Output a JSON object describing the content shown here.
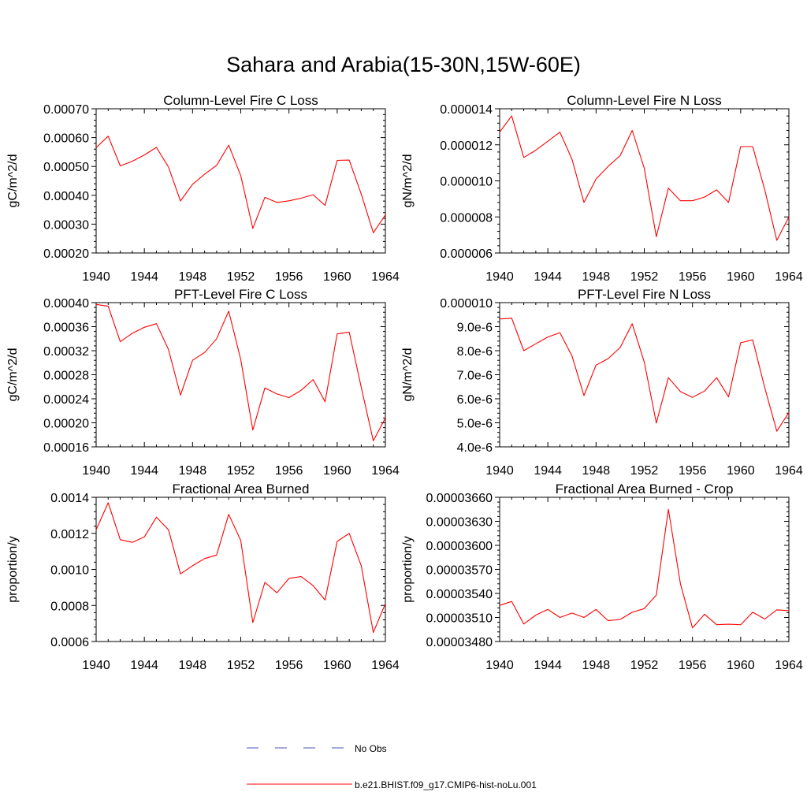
{
  "figure": {
    "title": "Sahara and Arabia(15-30N,15W-60E)"
  },
  "legend": {
    "items": [
      {
        "label": "No Obs",
        "color": "#4a55b5",
        "style": "dashed"
      },
      {
        "label": "b.e21.BHIST.f09_g17.CMIP6-hist-noLu.001",
        "color": "#ff0000",
        "style": "solid"
      }
    ]
  },
  "chart_data": [
    {
      "type": "line",
      "title": "Column-Level Fire C Loss",
      "ylabel": "gC/m^2/d",
      "xlabel": "",
      "xlim": [
        1940,
        1964
      ],
      "ylim": [
        0.0002,
        0.0007
      ],
      "xticks": [
        1940,
        1944,
        1948,
        1952,
        1956,
        1960,
        1964
      ],
      "xtick_labels": [
        "1940",
        "1944",
        "1948",
        "1952",
        "1956",
        "1960",
        "1964"
      ],
      "yticks": [
        0.0002,
        0.0003,
        0.0004,
        0.0005,
        0.0006,
        0.0007
      ],
      "ytick_labels": [
        "0.00020",
        "0.00030",
        "0.00040",
        "0.00050",
        "0.00060",
        "0.00070"
      ],
      "x": [
        1940,
        1941,
        1942,
        1943,
        1944,
        1945,
        1946,
        1947,
        1948,
        1949,
        1950,
        1951,
        1952,
        1953,
        1954,
        1955,
        1956,
        1957,
        1958,
        1959,
        1960,
        1961,
        1962,
        1963,
        1964
      ],
      "series": [
        {
          "color": "#ff0000",
          "values": [
            0.000565,
            0.000605,
            0.000502,
            0.000518,
            0.00054,
            0.000566,
            0.000498,
            0.00038,
            0.000438,
            0.000473,
            0.000504,
            0.000574,
            0.000468,
            0.000285,
            0.000393,
            0.000375,
            0.000381,
            0.00039,
            0.000402,
            0.000365,
            0.000521,
            0.000522,
            0.000404,
            0.00027,
            0.000332
          ]
        }
      ]
    },
    {
      "type": "line",
      "title": "Column-Level Fire N Loss",
      "ylabel": "gN/m^2/d",
      "xlabel": "",
      "xlim": [
        1940,
        1964
      ],
      "ylim": [
        6e-06,
        1.4e-05
      ],
      "xticks": [
        1940,
        1944,
        1948,
        1952,
        1956,
        1960,
        1964
      ],
      "xtick_labels": [
        "1940",
        "1944",
        "1948",
        "1952",
        "1956",
        "1960",
        "1964"
      ],
      "yticks": [
        6e-06,
        8e-06,
        1e-05,
        1.2e-05,
        1.4e-05
      ],
      "ytick_labels": [
        "0.000006",
        "0.000008",
        "0.000010",
        "0.000012",
        "0.000014"
      ],
      "x": [
        1940,
        1941,
        1942,
        1943,
        1944,
        1945,
        1946,
        1947,
        1948,
        1949,
        1950,
        1951,
        1952,
        1953,
        1954,
        1955,
        1956,
        1957,
        1958,
        1959,
        1960,
        1961,
        1962,
        1963,
        1964
      ],
      "series": [
        {
          "color": "#ff0000",
          "values": [
            1.27e-05,
            1.36e-05,
            1.13e-05,
            1.17e-05,
            1.22e-05,
            1.27e-05,
            1.12e-05,
            8.8e-06,
            1.01e-05,
            1.08e-05,
            1.14e-05,
            1.28e-05,
            1.07e-05,
            6.9e-06,
            9.6e-06,
            8.9e-06,
            8.9e-06,
            9.1e-06,
            9.5e-06,
            8.8e-06,
            1.19e-05,
            1.19e-05,
            9.5e-06,
            6.7e-06,
            8e-06
          ]
        }
      ]
    },
    {
      "type": "line",
      "title": "PFT-Level Fire C Loss",
      "ylabel": "gC/m^2/d",
      "xlabel": "",
      "xlim": [
        1940,
        1964
      ],
      "ylim": [
        0.00016,
        0.0004
      ],
      "xticks": [
        1940,
        1944,
        1948,
        1952,
        1956,
        1960,
        1964
      ],
      "xtick_labels": [
        "1940",
        "1944",
        "1948",
        "1952",
        "1956",
        "1960",
        "1964"
      ],
      "yticks": [
        0.00016,
        0.0002,
        0.00024,
        0.00028,
        0.00032,
        0.00036,
        0.0004
      ],
      "ytick_labels": [
        "0.00016",
        "0.00020",
        "0.00024",
        "0.00028",
        "0.00032",
        "0.00036",
        "0.00040"
      ],
      "x": [
        1940,
        1941,
        1942,
        1943,
        1944,
        1945,
        1946,
        1947,
        1948,
        1949,
        1950,
        1951,
        1952,
        1953,
        1954,
        1955,
        1956,
        1957,
        1958,
        1959,
        1960,
        1961,
        1962,
        1963,
        1964
      ],
      "series": [
        {
          "color": "#ff0000",
          "values": [
            0.000397,
            0.000394,
            0.000335,
            0.000349,
            0.000359,
            0.000365,
            0.000322,
            0.000246,
            0.000304,
            0.000317,
            0.00034,
            0.000386,
            0.000305,
            0.000188,
            0.000258,
            0.000248,
            0.000242,
            0.000254,
            0.000272,
            0.000235,
            0.000348,
            0.000351,
            0.000259,
            0.00017,
            0.000208
          ]
        }
      ]
    },
    {
      "type": "line",
      "title": "PFT-Level Fire N Loss",
      "ylabel": "gN/m^2/d",
      "xlabel": "",
      "xlim": [
        1940,
        1964
      ],
      "ylim": [
        4e-06,
        1e-05
      ],
      "xticks": [
        1940,
        1944,
        1948,
        1952,
        1956,
        1960,
        1964
      ],
      "xtick_labels": [
        "1940",
        "1944",
        "1948",
        "1952",
        "1956",
        "1960",
        "1964"
      ],
      "yticks": [
        4e-06,
        5e-06,
        6e-06,
        7e-06,
        8e-06,
        9e-06,
        1e-05
      ],
      "ytick_labels": [
        "4.0e-6",
        "5.0e-6",
        "6.0e-6",
        "7.0e-6",
        "8.0e-6",
        "9.0e-6",
        "0.000010"
      ],
      "x": [
        1940,
        1941,
        1942,
        1943,
        1944,
        1945,
        1946,
        1947,
        1948,
        1949,
        1950,
        1951,
        1952,
        1953,
        1954,
        1955,
        1956,
        1957,
        1958,
        1959,
        1960,
        1961,
        1962,
        1963,
        1964
      ],
      "series": [
        {
          "color": "#ff0000",
          "values": [
            9.32e-06,
            9.35e-06,
            8e-06,
            8.29e-06,
            8.57e-06,
            8.75e-06,
            7.78e-06,
            6.13e-06,
            7.4e-06,
            7.67e-06,
            8.13e-06,
            9.12e-06,
            7.53e-06,
            4.99e-06,
            6.88e-06,
            6.3e-06,
            6.06e-06,
            6.32e-06,
            6.88e-06,
            6.08e-06,
            8.33e-06,
            8.45e-06,
            6.46e-06,
            4.65e-06,
            5.43e-06
          ]
        }
      ]
    },
    {
      "type": "line",
      "title": "Fractional Area Burned",
      "ylabel": "proportion/y",
      "xlabel": "",
      "xlim": [
        1940,
        1964
      ],
      "ylim": [
        0.0006,
        0.0014
      ],
      "xticks": [
        1940,
        1944,
        1948,
        1952,
        1956,
        1960,
        1964
      ],
      "xtick_labels": [
        "1940",
        "1944",
        "1948",
        "1952",
        "1956",
        "1960",
        "1964"
      ],
      "yticks": [
        0.0006,
        0.0008,
        0.001,
        0.0012,
        0.0014
      ],
      "ytick_labels": [
        "0.0006",
        "0.0008",
        "0.0010",
        "0.0012",
        "0.0014"
      ],
      "x": [
        1940,
        1941,
        1942,
        1943,
        1944,
        1945,
        1946,
        1947,
        1948,
        1949,
        1950,
        1951,
        1952,
        1953,
        1954,
        1955,
        1956,
        1957,
        1958,
        1959,
        1960,
        1961,
        1962,
        1963,
        1964
      ],
      "series": [
        {
          "color": "#ff0000",
          "values": [
            0.00122,
            0.00137,
            0.001165,
            0.00115,
            0.00118,
            0.00129,
            0.00122,
            0.000975,
            0.00102,
            0.00106,
            0.00108,
            0.001305,
            0.00116,
            0.000705,
            0.000928,
            0.00087,
            0.00095,
            0.00096,
            0.00091,
            0.00083,
            0.001155,
            0.0012,
            0.00102,
            0.00065,
            0.00081
          ]
        }
      ]
    },
    {
      "type": "line",
      "title": "Fractional Area Burned - Crop",
      "ylabel": "proportion/y",
      "xlabel": "",
      "xlim": [
        1940,
        1964
      ],
      "ylim": [
        3.48e-05,
        3.66e-05
      ],
      "xticks": [
        1940,
        1944,
        1948,
        1952,
        1956,
        1960,
        1964
      ],
      "xtick_labels": [
        "1940",
        "1944",
        "1948",
        "1952",
        "1956",
        "1960",
        "1964"
      ],
      "yticks": [
        3.48e-05,
        3.51e-05,
        3.54e-05,
        3.57e-05,
        3.6e-05,
        3.63e-05,
        3.66e-05
      ],
      "ytick_labels": [
        "0.00003480",
        "0.00003510",
        "0.00003540",
        "0.00003570",
        "0.00003600",
        "0.00003630",
        "0.00003660"
      ],
      "x": [
        1940,
        1941,
        1942,
        1943,
        1944,
        1945,
        1946,
        1947,
        1948,
        1949,
        1950,
        1951,
        1952,
        1953,
        1954,
        1955,
        1956,
        1957,
        1958,
        1959,
        1960,
        1961,
        1962,
        1963,
        1964
      ],
      "series": [
        {
          "color": "#ff0000",
          "values": [
            3.525e-05,
            3.53e-05,
            3.5018e-05,
            3.513e-05,
            3.52e-05,
            3.51e-05,
            3.5155e-05,
            3.51e-05,
            3.52e-05,
            3.506e-05,
            3.5075e-05,
            3.5165e-05,
            3.521e-05,
            3.538e-05,
            3.645e-05,
            3.552e-05,
            3.497e-05,
            3.514e-05,
            3.501e-05,
            3.5015e-05,
            3.501e-05,
            3.5165e-05,
            3.508e-05,
            3.5195e-05,
            3.5185e-05
          ]
        }
      ]
    }
  ]
}
